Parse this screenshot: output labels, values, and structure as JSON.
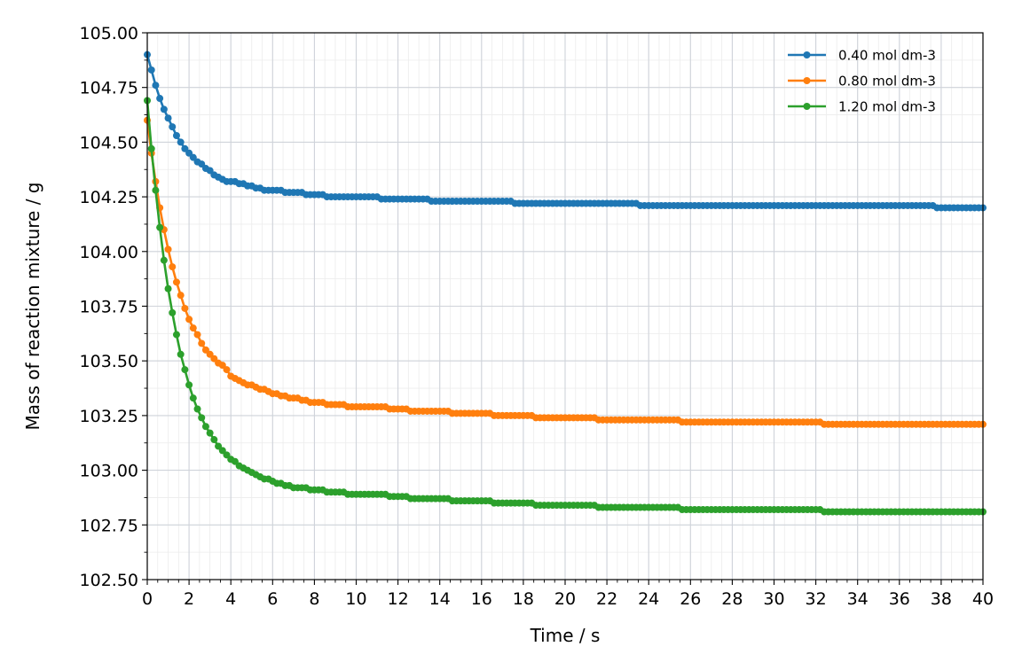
{
  "chart_data": {
    "type": "line",
    "title": "",
    "xlabel": "Time / s",
    "ylabel": "Mass of reaction mixture / g",
    "xlim": [
      0,
      40
    ],
    "ylim": [
      102.5,
      105.0
    ],
    "xticks": [
      0,
      2,
      4,
      6,
      8,
      10,
      12,
      14,
      16,
      18,
      20,
      22,
      24,
      26,
      28,
      30,
      32,
      34,
      36,
      38,
      40
    ],
    "xtick_labels": [
      "0",
      "2",
      "4",
      "6",
      "8",
      "10",
      "12",
      "14",
      "16",
      "18",
      "20",
      "22",
      "24",
      "26",
      "28",
      "30",
      "32",
      "34",
      "36",
      "38",
      "40"
    ],
    "yticks": [
      102.5,
      102.75,
      103.0,
      103.25,
      103.5,
      103.75,
      104.0,
      104.25,
      104.5,
      104.75,
      105.0
    ],
    "ytick_labels": [
      "102.50",
      "102.75",
      "103.00",
      "103.25",
      "103.50",
      "103.75",
      "104.00",
      "104.25",
      "104.50",
      "104.75",
      "105.00"
    ],
    "grid": true,
    "minor_grid": true,
    "legend_position": "top-right",
    "sample_interval_s": 0.2,
    "series": [
      {
        "name": "0.40 mol dm-3",
        "color": "#1f77b4",
        "points": [
          [
            0,
            104.9
          ],
          [
            0.2,
            104.83
          ],
          [
            0.4,
            104.76
          ],
          [
            0.6,
            104.7
          ],
          [
            0.8,
            104.65
          ],
          [
            1.0,
            104.61
          ],
          [
            1.2,
            104.57
          ],
          [
            1.4,
            104.53
          ],
          [
            1.6,
            104.5
          ],
          [
            1.8,
            104.47
          ],
          [
            2.0,
            104.45
          ],
          [
            2.4,
            104.41
          ],
          [
            2.8,
            104.38
          ],
          [
            3.2,
            104.35
          ],
          [
            3.6,
            104.33
          ],
          [
            4.0,
            104.32
          ],
          [
            4.8,
            104.3
          ],
          [
            5.6,
            104.28
          ],
          [
            6.0,
            104.28
          ],
          [
            7.0,
            104.27
          ],
          [
            8.0,
            104.26
          ],
          [
            9.0,
            104.25
          ],
          [
            10.0,
            104.25
          ],
          [
            12.0,
            104.24
          ],
          [
            13.0,
            104.24
          ],
          [
            14.0,
            104.23
          ],
          [
            16.0,
            104.23
          ],
          [
            17.0,
            104.23
          ],
          [
            18.0,
            104.22
          ],
          [
            20.0,
            104.22
          ],
          [
            22.0,
            104.22
          ],
          [
            23.0,
            104.22
          ],
          [
            24.0,
            104.21
          ],
          [
            28.0,
            104.21
          ],
          [
            32.0,
            104.21
          ],
          [
            36.0,
            104.21
          ],
          [
            37.4,
            104.21
          ],
          [
            38.0,
            104.2
          ],
          [
            40.0,
            104.2
          ]
        ]
      },
      {
        "name": "0.80 mol dm-3",
        "color": "#ff7f0e",
        "points": [
          [
            0,
            104.6
          ],
          [
            0.2,
            104.45
          ],
          [
            0.4,
            104.32
          ],
          [
            0.6,
            104.2
          ],
          [
            0.8,
            104.1
          ],
          [
            1.0,
            104.01
          ],
          [
            1.2,
            103.93
          ],
          [
            1.4,
            103.86
          ],
          [
            1.6,
            103.8
          ],
          [
            1.8,
            103.74
          ],
          [
            2.0,
            103.69
          ],
          [
            2.2,
            103.65
          ],
          [
            2.4,
            103.62
          ],
          [
            2.6,
            103.58
          ],
          [
            2.8,
            103.55
          ],
          [
            3.0,
            103.53
          ],
          [
            3.4,
            103.49
          ],
          [
            3.8,
            103.46
          ],
          [
            4.0,
            103.43
          ],
          [
            4.6,
            103.4
          ],
          [
            5.2,
            103.38
          ],
          [
            6.0,
            103.35
          ],
          [
            7.0,
            103.33
          ],
          [
            8.0,
            103.31
          ],
          [
            9.0,
            103.3
          ],
          [
            10.0,
            103.29
          ],
          [
            11.0,
            103.29
          ],
          [
            12.0,
            103.28
          ],
          [
            13.0,
            103.27
          ],
          [
            14.0,
            103.27
          ],
          [
            15.0,
            103.26
          ],
          [
            16.0,
            103.26
          ],
          [
            17.0,
            103.25
          ],
          [
            18.0,
            103.25
          ],
          [
            19.0,
            103.24
          ],
          [
            21.0,
            103.24
          ],
          [
            22.0,
            103.23
          ],
          [
            24.0,
            103.23
          ],
          [
            25.0,
            103.23
          ],
          [
            26.0,
            103.22
          ],
          [
            28.0,
            103.22
          ],
          [
            30.0,
            103.22
          ],
          [
            32.0,
            103.22
          ],
          [
            32.6,
            103.21
          ],
          [
            34.0,
            103.21
          ],
          [
            36.0,
            103.21
          ],
          [
            38.0,
            103.21
          ],
          [
            40.0,
            103.21
          ]
        ]
      },
      {
        "name": "1.20 mol dm-3",
        "color": "#2ca02c",
        "points": [
          [
            0,
            104.69
          ],
          [
            0.2,
            104.47
          ],
          [
            0.4,
            104.28
          ],
          [
            0.6,
            104.11
          ],
          [
            0.8,
            103.96
          ],
          [
            1.0,
            103.83
          ],
          [
            1.2,
            103.72
          ],
          [
            1.4,
            103.62
          ],
          [
            1.6,
            103.53
          ],
          [
            1.8,
            103.46
          ],
          [
            2.0,
            103.39
          ],
          [
            2.2,
            103.33
          ],
          [
            2.4,
            103.28
          ],
          [
            2.6,
            103.24
          ],
          [
            2.8,
            103.2
          ],
          [
            3.0,
            103.17
          ],
          [
            3.2,
            103.14
          ],
          [
            3.4,
            103.11
          ],
          [
            3.6,
            103.09
          ],
          [
            3.8,
            103.07
          ],
          [
            4.0,
            103.05
          ],
          [
            4.4,
            103.02
          ],
          [
            5.0,
            102.99
          ],
          [
            5.6,
            102.96
          ],
          [
            6.0,
            102.95
          ],
          [
            6.6,
            102.93
          ],
          [
            7.2,
            102.92
          ],
          [
            8.0,
            102.91
          ],
          [
            9.0,
            102.9
          ],
          [
            10.0,
            102.89
          ],
          [
            11.0,
            102.89
          ],
          [
            12.0,
            102.88
          ],
          [
            13.0,
            102.87
          ],
          [
            14.0,
            102.87
          ],
          [
            15.0,
            102.86
          ],
          [
            16.0,
            102.86
          ],
          [
            17.0,
            102.85
          ],
          [
            18.0,
            102.85
          ],
          [
            19.0,
            102.84
          ],
          [
            21.0,
            102.84
          ],
          [
            22.0,
            102.83
          ],
          [
            24.0,
            102.83
          ],
          [
            25.0,
            102.83
          ],
          [
            26.0,
            102.82
          ],
          [
            28.0,
            102.82
          ],
          [
            30.0,
            102.82
          ],
          [
            32.0,
            102.82
          ],
          [
            32.6,
            102.81
          ],
          [
            34.0,
            102.81
          ],
          [
            36.0,
            102.81
          ],
          [
            38.0,
            102.81
          ],
          [
            40.0,
            102.81
          ]
        ]
      }
    ]
  }
}
